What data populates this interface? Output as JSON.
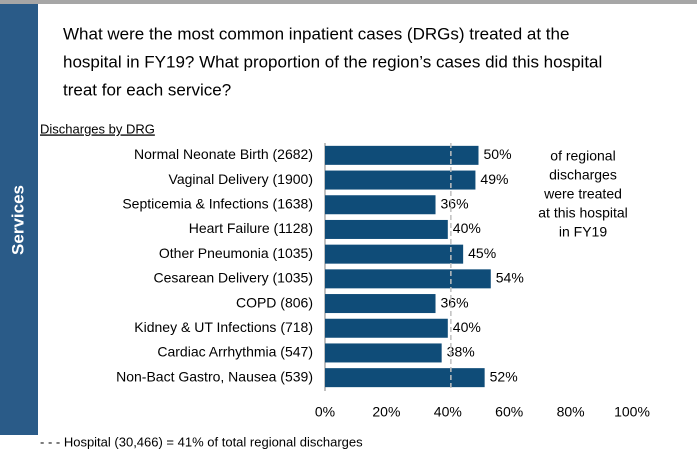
{
  "chart_data": {
    "type": "bar",
    "orientation": "horizontal",
    "section": "Services",
    "title_lines": [
      "What were the most common inpatient cases (DRGs) treated at the",
      "hospital in FY19? What proportion of the region’s cases did this hospital",
      "treat for each service?"
    ],
    "subtitle": "Discharges by DRG",
    "categories": [
      "Normal Neonate Birth (2682)",
      "Vaginal Delivery (1900)",
      "Septicemia & Infections (1638)",
      "Heart Failure (1128)",
      "Other Pneumonia (1035)",
      "Cesarean Delivery (1035)",
      "COPD (806)",
      "Kidney & UT Infections (718)",
      "Cardiac Arrhythmia  (547)",
      "Non-Bact Gastro, Nausea (539)"
    ],
    "values": [
      50,
      49,
      36,
      40,
      45,
      54,
      36,
      40,
      38,
      52
    ],
    "value_labels": [
      "50%",
      "49%",
      "36%",
      "40%",
      "45%",
      "54%",
      "36%",
      "40%",
      "38%",
      "52%"
    ],
    "color": "#0f4c78",
    "xlim": [
      0,
      100
    ],
    "xticks": [
      {
        "value": 0,
        "label": "0%"
      },
      {
        "value": 20,
        "label": "20%"
      },
      {
        "value": 40,
        "label": "40%"
      },
      {
        "value": 60,
        "label": "60%"
      },
      {
        "value": 80,
        "label": "80%"
      },
      {
        "value": 100,
        "label": "100%"
      }
    ],
    "reference_line": {
      "value": 41,
      "label": "- - -  Hospital  (30,466) = 41%  of total regional discharges"
    },
    "annotation_lines": [
      "of regional",
      "discharges",
      "were treated",
      "at this hospital",
      "in FY19"
    ]
  }
}
